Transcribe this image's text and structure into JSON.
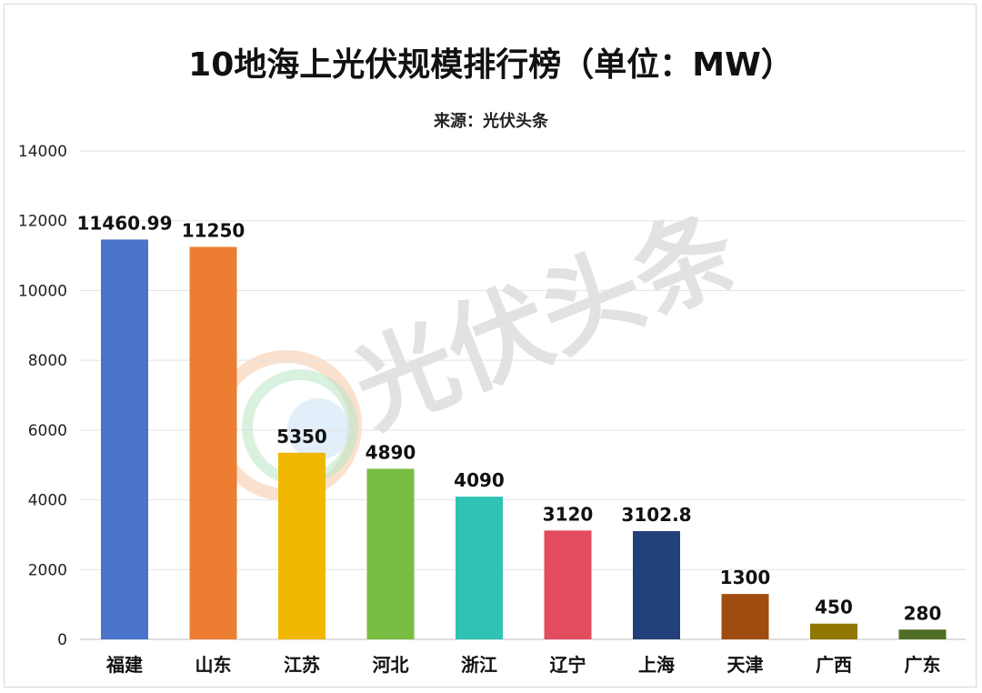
{
  "chart_data": {
    "type": "bar",
    "title": "10地海上光伏规模排行榜（单位：MW）",
    "subtitle": "来源：光伏头条",
    "categories": [
      "福建",
      "山东",
      "江苏",
      "河北",
      "浙江",
      "辽宁",
      "上海",
      "天津",
      "广西",
      "广东"
    ],
    "values": [
      11460.99,
      11250,
      5350,
      4890,
      4090,
      3120,
      3102.8,
      1300,
      450,
      280
    ],
    "value_labels": [
      "11460.99",
      "11250",
      "5350",
      "4890",
      "4090",
      "3120",
      "3102.8",
      "1300",
      "450",
      "280"
    ],
    "colors": [
      "#4a74c9",
      "#ed7d31",
      "#f0b800",
      "#77bd42",
      "#2fc2b5",
      "#e34b5e",
      "#22417a",
      "#a04c10",
      "#8f7700",
      "#4f6e25"
    ],
    "ylim": [
      0,
      14000
    ],
    "yticks": [
      0,
      2000,
      4000,
      6000,
      8000,
      10000,
      12000,
      14000
    ],
    "xlabel": "",
    "ylabel": "",
    "grid": true,
    "legend": "none"
  },
  "watermark": {
    "text": "光伏头条"
  }
}
